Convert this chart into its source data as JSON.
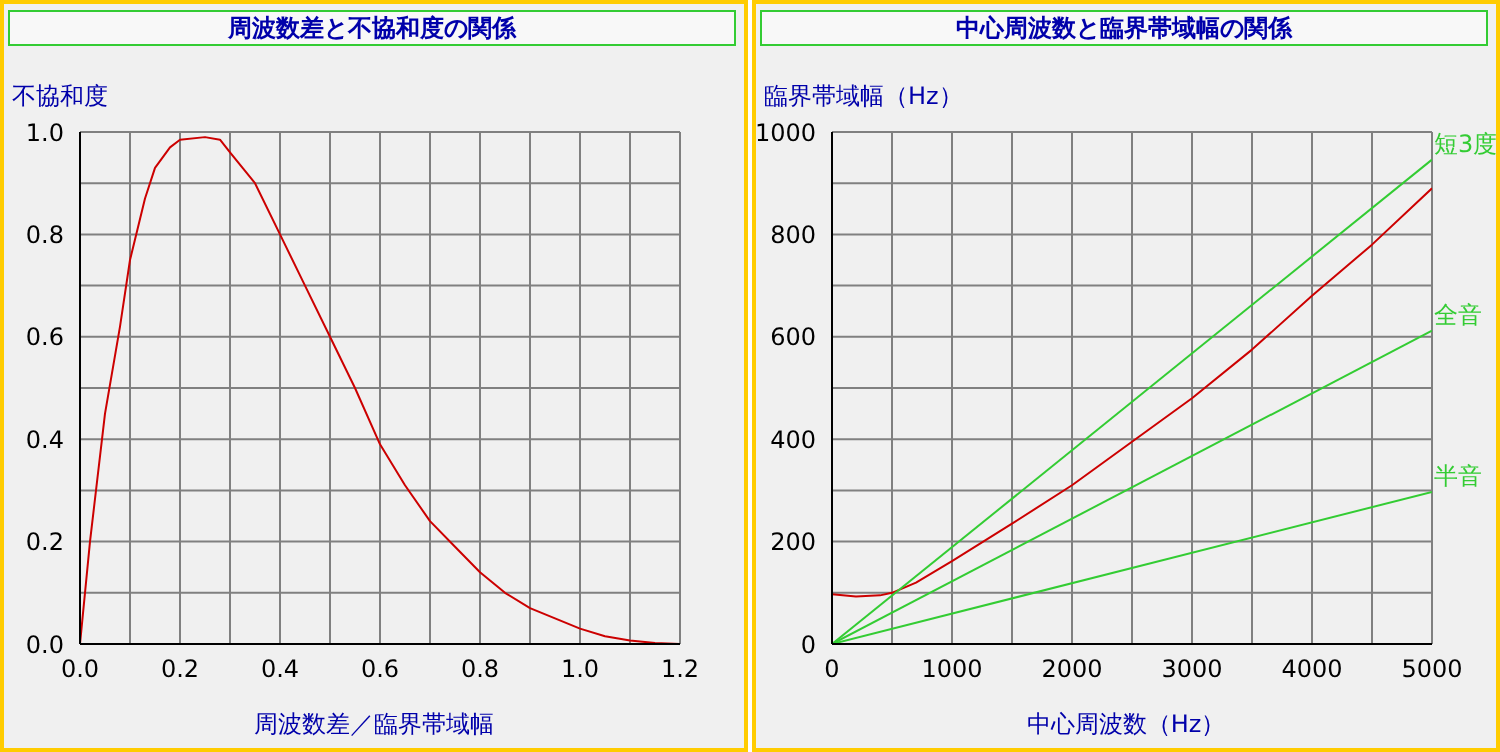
{
  "chart_data": [
    {
      "type": "line",
      "title": "周波数差と不協和度の関係",
      "xlabel": "周波数差／臨界帯域幅",
      "ylabel": "不協和度",
      "grid": true,
      "marker": "none",
      "xlim": [
        0,
        1.2
      ],
      "ylim": [
        0,
        1
      ],
      "xticks": [
        {
          "value": 0,
          "label": "0.0"
        },
        {
          "value": 0.1,
          "label": null
        },
        0.2,
        {
          "value": 0.3,
          "label": null
        },
        0.4,
        {
          "value": 0.5,
          "label": null
        },
        0.6,
        {
          "value": 0.7,
          "label": null
        },
        0.8,
        {
          "value": 0.9,
          "label": null
        },
        {
          "value": 1,
          "label": "1.0"
        },
        {
          "value": 1.1,
          "label": null
        },
        1.2
      ],
      "yticks": [
        {
          "value": 0,
          "label": "0.0"
        },
        {
          "value": 0.1,
          "label": null
        },
        0.2,
        {
          "value": 0.3,
          "label": null
        },
        0.4,
        {
          "value": 0.5,
          "label": null
        },
        0.6,
        {
          "value": 0.7,
          "label": null
        },
        0.8,
        {
          "value": 0.9,
          "label": null
        },
        {
          "value": 1,
          "label": "1.0"
        }
      ],
      "series": [
        {
          "color": "#cc0000",
          "x": [
            0,
            0.02,
            0.05,
            0.08,
            0.1,
            0.13,
            0.15,
            0.18,
            0.2,
            0.25,
            0.28,
            0.3,
            0.35,
            0.4,
            0.45,
            0.5,
            0.55,
            0.6,
            0.65,
            0.7,
            0.75,
            0.8,
            0.85,
            0.9,
            0.95,
            1.0,
            1.05,
            1.1,
            1.15,
            1.2
          ],
          "values": [
            0,
            0.2,
            0.45,
            0.62,
            0.75,
            0.87,
            0.93,
            0.97,
            0.985,
            0.99,
            0.985,
            0.96,
            0.9,
            0.8,
            0.7,
            0.6,
            0.5,
            0.39,
            0.31,
            0.24,
            0.19,
            0.14,
            0.1,
            0.07,
            0.05,
            0.03,
            0.015,
            0.007,
            0.002,
            0
          ]
        }
      ]
    },
    {
      "type": "line",
      "title": "中心周波数と臨界帯域幅の関係",
      "xlabel": "中心周波数（Hz）",
      "ylabel": "臨界帯域幅（Hz）",
      "grid": true,
      "marker": "none",
      "xlim": [
        0,
        5000
      ],
      "ylim": [
        0,
        1000
      ],
      "xticks": [
        0,
        {
          "value": 500,
          "label": null
        },
        1000,
        {
          "value": 1500,
          "label": null
        },
        2000,
        {
          "value": 2500,
          "label": null
        },
        3000,
        {
          "value": 3500,
          "label": null
        },
        4000,
        {
          "value": 4500,
          "label": null
        },
        5000
      ],
      "yticks": [
        0,
        {
          "value": 100,
          "label": null
        },
        200,
        {
          "value": 300,
          "label": null
        },
        400,
        {
          "value": 500,
          "label": null
        },
        600,
        {
          "value": 700,
          "label": null
        },
        800,
        {
          "value": 900,
          "label": null
        },
        1000
      ],
      "series": [
        {
          "color": "#cc0000",
          "x": [
            0,
            200,
            400,
            500,
            700,
            1000,
            1500,
            2000,
            2500,
            3000,
            3500,
            4000,
            4500,
            5000
          ],
          "values": [
            97,
            93,
            95,
            100,
            120,
            162,
            235,
            310,
            395,
            480,
            575,
            680,
            780,
            890
          ]
        },
        {
          "name": "短3度",
          "color": "#33cc33",
          "x": [
            0,
            5000
          ],
          "values": [
            0,
            946
          ]
        },
        {
          "name": "全音",
          "color": "#33cc33",
          "x": [
            0,
            5000
          ],
          "values": [
            0,
            612
          ]
        },
        {
          "name": "半音",
          "color": "#33cc33",
          "x": [
            0,
            5000
          ],
          "values": [
            0,
            297
          ]
        }
      ]
    }
  ]
}
